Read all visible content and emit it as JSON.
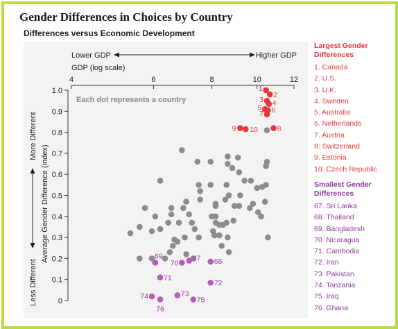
{
  "page": {
    "title": "Gender Differences in Choices by Country",
    "subtitle": "Differences versus Economic Development"
  },
  "colors": {
    "frame": "#b9db3d",
    "panel": "#f3f3f3",
    "neutral_dot": "#8c8c8c",
    "largest": "#e5383b",
    "smallest": "#b45cba"
  },
  "chart_data": {
    "type": "scatter",
    "x_scale": "log",
    "xlim": [
      4,
      12
    ],
    "ylim": [
      0,
      1.0
    ],
    "x_ticks": [
      4,
      6,
      8,
      10,
      12
    ],
    "y_ticks": [
      "0",
      "0.1",
      "0.2",
      "0.3",
      "0.4",
      "0.5",
      "0.6",
      "0.7",
      "0.8",
      "0.9",
      "1.0"
    ],
    "xlabel": "GDP (log scale)",
    "x_direction_low": "Lower GDP",
    "x_direction_high": "Higher GDP",
    "ylabel": "Average Gender Difference (index)",
    "y_direction_high": "More Different",
    "y_direction_low": "Less Different",
    "annotation": "Each dot represents a country",
    "grid": false,
    "series": [
      {
        "name": "Largest Gender Differences",
        "color": "#e5383b",
        "points": [
          {
            "label": "1",
            "country": "Canada",
            "x": 10.45,
            "y": 1.0
          },
          {
            "label": "2",
            "country": "U.S.",
            "x": 10.65,
            "y": 0.98
          },
          {
            "label": "3",
            "country": "U.K.",
            "x": 10.5,
            "y": 0.95
          },
          {
            "label": "4",
            "country": "Sweden",
            "x": 10.6,
            "y": 0.935
          },
          {
            "label": "5",
            "country": "Australia",
            "x": 10.4,
            "y": 0.91
          },
          {
            "label": "6",
            "country": "Netherlands",
            "x": 10.55,
            "y": 0.905
          },
          {
            "label": "7",
            "country": "Austria",
            "x": 10.5,
            "y": 0.885
          },
          {
            "label": "8",
            "country": "Switzerland",
            "x": 10.85,
            "y": 0.82
          },
          {
            "label": "9",
            "country": "Estonia",
            "x": 9.2,
            "y": 0.82
          },
          {
            "label": "10",
            "country": "Czech Republic",
            "x": 9.45,
            "y": 0.815
          }
        ]
      },
      {
        "name": "Smallest Gender Differences",
        "color": "#b45cba",
        "points": [
          {
            "label": "67",
            "country": "Sri Lanka",
            "x": 7.15,
            "y": 0.19
          },
          {
            "label": "68",
            "country": "Thailand",
            "x": 7.95,
            "y": 0.185
          },
          {
            "label": "69",
            "country": "Bangladesh",
            "x": 6.05,
            "y": 0.18
          },
          {
            "label": "70",
            "country": "Nicaragua",
            "x": 6.9,
            "y": 0.18
          },
          {
            "label": "71",
            "country": "Cambodia",
            "x": 6.2,
            "y": 0.11
          },
          {
            "label": "72",
            "country": "Iran",
            "x": 7.95,
            "y": 0.085
          },
          {
            "label": "73",
            "country": "Pakistan",
            "x": 6.75,
            "y": 0.025
          },
          {
            "label": "74",
            "country": "Tanzania",
            "x": 5.95,
            "y": 0.02
          },
          {
            "label": "75",
            "country": "Iraq",
            "x": 7.3,
            "y": 0.005
          },
          {
            "label": "76",
            "country": "Ghana",
            "x": 6.2,
            "y": 0.005
          }
        ]
      },
      {
        "color": "#8c8c8c",
        "points": [
          {
            "x": 6.9,
            "y": 0.715
          },
          {
            "x": 7.45,
            "y": 0.66
          },
          {
            "x": 7.95,
            "y": 0.66
          },
          {
            "x": 8.65,
            "y": 0.685
          },
          {
            "x": 8.65,
            "y": 0.65
          },
          {
            "x": 9.1,
            "y": 0.68
          },
          {
            "x": 10.5,
            "y": 0.81
          },
          {
            "x": 10.5,
            "y": 0.66
          },
          {
            "x": 10.45,
            "y": 0.64
          },
          {
            "x": 9.15,
            "y": 0.61
          },
          {
            "x": 8.85,
            "y": 0.63
          },
          {
            "x": 8.6,
            "y": 0.55
          },
          {
            "x": 9.4,
            "y": 0.57
          },
          {
            "x": 9.7,
            "y": 0.57
          },
          {
            "x": 10.0,
            "y": 0.535
          },
          {
            "x": 10.25,
            "y": 0.54
          },
          {
            "x": 10.45,
            "y": 0.55
          },
          {
            "x": 10.4,
            "y": 0.47
          },
          {
            "x": 10.2,
            "y": 0.4
          },
          {
            "x": 10.05,
            "y": 0.42
          },
          {
            "x": 10.55,
            "y": 0.3
          },
          {
            "x": 9.8,
            "y": 0.46
          },
          {
            "x": 9.65,
            "y": 0.44
          },
          {
            "x": 9.2,
            "y": 0.5
          },
          {
            "x": 9.15,
            "y": 0.45
          },
          {
            "x": 8.95,
            "y": 0.45
          },
          {
            "x": 8.7,
            "y": 0.5
          },
          {
            "x": 8.9,
            "y": 0.38
          },
          {
            "x": 8.6,
            "y": 0.37
          },
          {
            "x": 8.55,
            "y": 0.48
          },
          {
            "x": 7.95,
            "y": 0.55
          },
          {
            "x": 7.55,
            "y": 0.52
          },
          {
            "x": 7.5,
            "y": 0.55
          },
          {
            "x": 7.55,
            "y": 0.48
          },
          {
            "x": 8.15,
            "y": 0.46
          },
          {
            "x": 8.15,
            "y": 0.45
          },
          {
            "x": 8.15,
            "y": 0.4
          },
          {
            "x": 8.15,
            "y": 0.37
          },
          {
            "x": 8.0,
            "y": 0.4
          },
          {
            "x": 8.05,
            "y": 0.33
          },
          {
            "x": 8.3,
            "y": 0.36
          },
          {
            "x": 8.45,
            "y": 0.36
          },
          {
            "x": 8.1,
            "y": 0.31
          },
          {
            "x": 8.3,
            "y": 0.31
          },
          {
            "x": 8.65,
            "y": 0.3
          },
          {
            "x": 8.4,
            "y": 0.26
          },
          {
            "x": 8.7,
            "y": 0.23
          },
          {
            "x": 7.5,
            "y": 0.3
          },
          {
            "x": 7.35,
            "y": 0.34
          },
          {
            "x": 7.05,
            "y": 0.47
          },
          {
            "x": 6.95,
            "y": 0.44
          },
          {
            "x": 6.55,
            "y": 0.44
          },
          {
            "x": 6.55,
            "y": 0.41
          },
          {
            "x": 7.15,
            "y": 0.41
          },
          {
            "x": 7.25,
            "y": 0.37
          },
          {
            "x": 6.8,
            "y": 0.37
          },
          {
            "x": 6.45,
            "y": 0.37
          },
          {
            "x": 7.0,
            "y": 0.3
          },
          {
            "x": 6.65,
            "y": 0.29
          },
          {
            "x": 6.75,
            "y": 0.28
          },
          {
            "x": 6.2,
            "y": 0.34
          },
          {
            "x": 5.95,
            "y": 0.33
          },
          {
            "x": 5.75,
            "y": 0.44
          },
          {
            "x": 5.6,
            "y": 0.35
          },
          {
            "x": 5.35,
            "y": 0.32
          },
          {
            "x": 6.2,
            "y": 0.57
          },
          {
            "x": 6.05,
            "y": 0.4
          },
          {
            "x": 6.6,
            "y": 0.26
          },
          {
            "x": 6.5,
            "y": 0.23
          },
          {
            "x": 6.35,
            "y": 0.2
          },
          {
            "x": 5.95,
            "y": 0.2
          },
          {
            "x": 5.6,
            "y": 0.2
          },
          {
            "x": 7.05,
            "y": 0.22
          },
          {
            "x": 7.3,
            "y": 0.2
          }
        ]
      }
    ]
  }
}
